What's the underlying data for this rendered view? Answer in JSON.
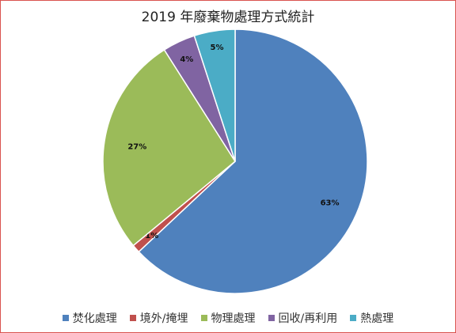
{
  "chart_data": {
    "type": "pie",
    "title": "2019 年廢棄物處理方式統計",
    "categories": [
      "焚化處理",
      "境外/掩埋",
      "物理處理",
      "回收/再利用",
      "熱處理"
    ],
    "values": [
      63,
      1,
      27,
      4,
      5
    ],
    "data_labels": [
      "63%",
      "1%",
      "27%",
      "4%",
      "5%"
    ],
    "colors": [
      "#4f81bd",
      "#c0504d",
      "#9bbb59",
      "#8064a2",
      "#4bacc6"
    ],
    "legend_position": "bottom",
    "start_angle": "12 o'clock",
    "direction": "clockwise"
  }
}
